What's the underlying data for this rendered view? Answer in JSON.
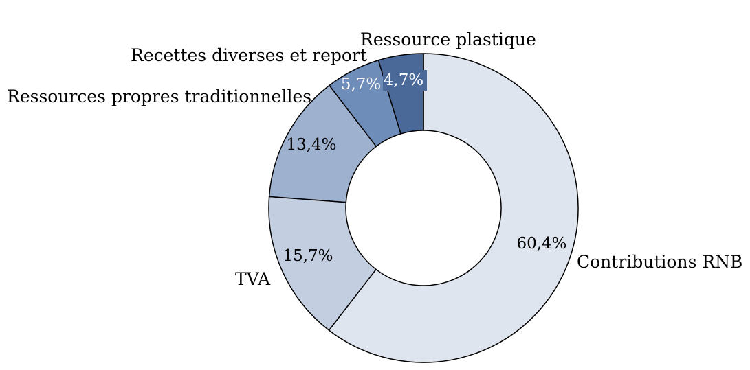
{
  "chart_data": {
    "type": "pie",
    "donut": true,
    "series": [
      {
        "name": "Contributions RNB",
        "value": 60.4,
        "label": "60,4%",
        "color": "#dfe5ef",
        "label_color": "#000000"
      },
      {
        "name": "TVA",
        "value": 15.7,
        "label": "15,7%",
        "color": "#c3cfe1",
        "label_color": "#000000"
      },
      {
        "name": "Ressources propres traditionnelles",
        "value": 13.4,
        "label": "13,4%",
        "color": "#9eb1cf",
        "label_color": "#000000"
      },
      {
        "name": "Recettes diverses et report",
        "value": 5.7,
        "label": "5,7%",
        "color": "#6f8db9",
        "label_color": "#ffffff"
      },
      {
        "name": "Ressource plastique",
        "value": 4.7,
        "label": "4,7%",
        "color": "#4a6898",
        "label_color": "#ffffff"
      }
    ],
    "start": "12 o'clock",
    "direction": "clockwise",
    "legend": "none"
  }
}
